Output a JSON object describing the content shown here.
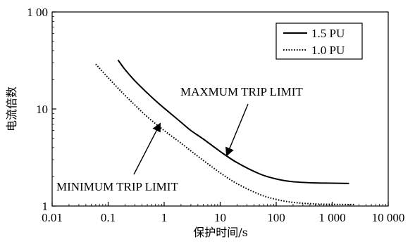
{
  "chart_data": {
    "type": "line",
    "x_scale": "log",
    "y_scale": "log",
    "xlim": [
      0.01,
      10000
    ],
    "ylim": [
      1,
      100
    ],
    "grid": false,
    "legend_position": "top-right",
    "xlabel": "保护时间/s",
    "ylabel": "电流倍数",
    "x_ticks": [
      {
        "value": 0.01,
        "label": "0.01"
      },
      {
        "value": 0.1,
        "label": "0.1"
      },
      {
        "value": 1,
        "label": "1"
      },
      {
        "value": 10,
        "label": "10"
      },
      {
        "value": 100,
        "label": "100"
      },
      {
        "value": 1000,
        "label": "1 000"
      },
      {
        "value": 10000,
        "label": "10 000"
      }
    ],
    "y_ticks": [
      {
        "value": 1,
        "label": "1"
      },
      {
        "value": 10,
        "label": "10"
      },
      {
        "value": 100,
        "label": "1 00"
      }
    ],
    "series": [
      {
        "name": "1.5 PU",
        "style": "solid",
        "color": "#000000",
        "points": [
          [
            0.15,
            32
          ],
          [
            0.2,
            25.5
          ],
          [
            0.3,
            19.5
          ],
          [
            0.5,
            14.6
          ],
          [
            0.7,
            12.2
          ],
          [
            1,
            10.2
          ],
          [
            2,
            7.3
          ],
          [
            3,
            6.0
          ],
          [
            5,
            4.9
          ],
          [
            10,
            3.65
          ],
          [
            20,
            2.8
          ],
          [
            50,
            2.15
          ],
          [
            100,
            1.9
          ],
          [
            200,
            1.78
          ],
          [
            500,
            1.73
          ],
          [
            1000,
            1.72
          ],
          [
            2000,
            1.71
          ]
        ]
      },
      {
        "name": "1.0 PU",
        "style": "dotted",
        "color": "#000000",
        "points": [
          [
            0.06,
            29
          ],
          [
            0.1,
            21
          ],
          [
            0.2,
            13.8
          ],
          [
            0.3,
            11
          ],
          [
            0.5,
            8.3
          ],
          [
            1,
            6.0
          ],
          [
            2,
            4.45
          ],
          [
            3,
            3.7
          ],
          [
            5,
            2.95
          ],
          [
            10,
            2.2
          ],
          [
            20,
            1.7
          ],
          [
            50,
            1.32
          ],
          [
            100,
            1.17
          ],
          [
            200,
            1.09
          ],
          [
            500,
            1.05
          ],
          [
            1000,
            1.04
          ],
          [
            2500,
            1.035
          ]
        ]
      }
    ],
    "annotations": [
      {
        "text": "MAXMUM TRIP LIMIT",
        "arrow_to": [
          13,
          3.3
        ]
      },
      {
        "text": "MINIMUM TRIP LIMIT",
        "arrow_to": [
          0.85,
          7.1
        ]
      }
    ]
  }
}
